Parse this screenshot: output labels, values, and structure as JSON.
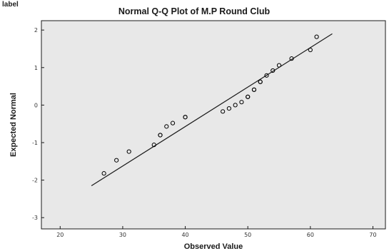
{
  "top_fragment": "label",
  "chart_data": {
    "type": "scatter",
    "title": "Normal Q-Q Plot of M.P Round Club",
    "xlabel": "Observed Value",
    "ylabel": "Expected Normal",
    "xlim": [
      17,
      72
    ],
    "ylim": [
      -3.3,
      2.25
    ],
    "x_ticks": [
      20,
      30,
      40,
      50,
      60,
      70
    ],
    "y_ticks": [
      2,
      1,
      0,
      -1,
      -2,
      -3
    ],
    "grid": false,
    "legend": "none",
    "points": {
      "x": [
        27,
        29,
        31,
        35,
        36,
        36,
        37,
        38,
        40,
        40,
        46,
        47,
        48,
        49,
        50,
        50,
        51,
        51,
        52,
        52,
        53,
        54,
        55,
        57,
        60,
        61
      ],
      "y": [
        -1.82,
        -1.47,
        -1.24,
        -1.06,
        -0.8,
        -0.8,
        -0.57,
        -0.48,
        -0.32,
        -0.32,
        -0.17,
        -0.09,
        0.0,
        0.08,
        0.22,
        0.22,
        0.41,
        0.41,
        0.62,
        0.62,
        0.79,
        0.92,
        1.06,
        1.24,
        1.47,
        1.82
      ]
    },
    "reference_line": {
      "x": [
        25,
        63.5
      ],
      "y": [
        -2.15,
        1.9
      ]
    },
    "colors": {
      "plot_background": "#e8e8e8",
      "plot_border": "#1a1a1a",
      "point_stroke": "#000000",
      "line": "#1a1a1a"
    }
  }
}
